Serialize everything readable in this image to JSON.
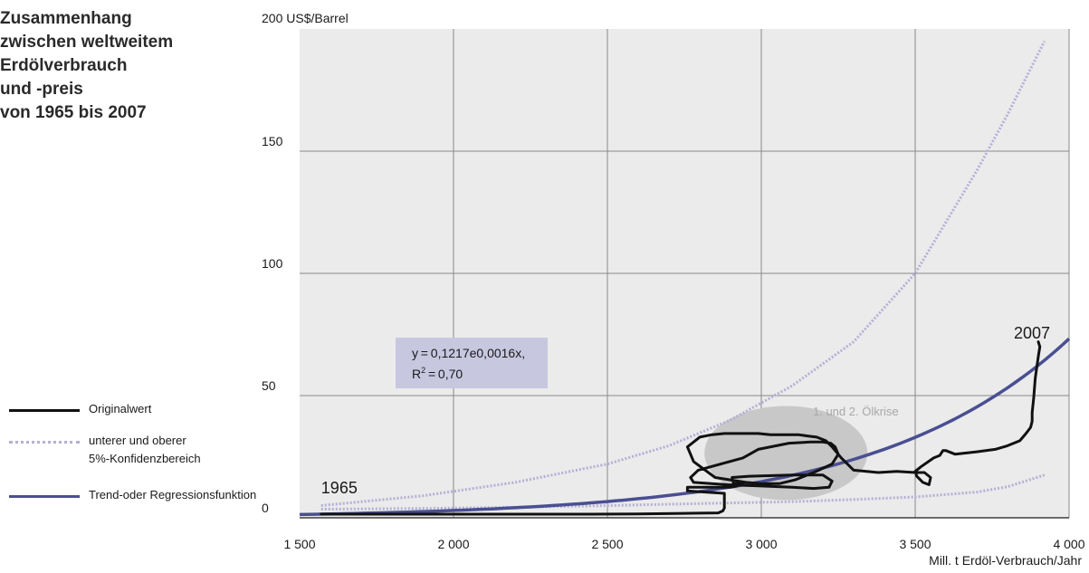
{
  "title_lines": [
    "Zusammenhang",
    "zwischen weltweitem",
    "Erdölverbrauch",
    "und -preis",
    "von 1965 bis 2007"
  ],
  "legend": {
    "original": "Originalwert",
    "confidence_line1": "unterer und oberer",
    "confidence_line2": "5%-Konfidenzbereich",
    "trend": "Trend-oder Regressionsfunktion"
  },
  "colors": {
    "background": "#ebebeb",
    "grid": "#8a8a8a",
    "original": "#111111",
    "trend": "#4a4f92",
    "confidence": "#b3b0d6",
    "equation_box": "#c8c7e0",
    "crisis_ellipse": "#c8c8c8",
    "crisis_label": "#a8a8a8"
  },
  "chart_data": {
    "type": "line",
    "title": "Zusammenhang zwischen weltweitem Erdölverbrauch und -preis von 1965 bis 2007",
    "xlabel": "Mill. t Erdöl-Verbrauch/Jahr",
    "ylabel": "200 US$/Barrel",
    "xlim": [
      1500,
      4000
    ],
    "ylim": [
      0,
      200
    ],
    "xticks": [
      1500,
      2000,
      2500,
      3000,
      3500,
      4000
    ],
    "xtick_labels": [
      "1 500",
      "2 000",
      "2 500",
      "3 000",
      "3 500",
      "4 000"
    ],
    "yticks": [
      0,
      50,
      100,
      150
    ],
    "ytick_labels": [
      "0",
      "50",
      "100",
      "150"
    ],
    "grid": true,
    "legend_position": "left",
    "annotations": {
      "start_year": "1965",
      "end_year": "2007",
      "crisis": "1. und 2. Ölkrise",
      "equation_line1": "y = 0,1217e0,0016x,",
      "equation_line2_base": "R",
      "equation_line2_sup": "2",
      "equation_line2_rest": " = 0,70"
    },
    "series": [
      {
        "name": "Originalwert",
        "x": [
          1570,
          1700,
          1850,
          2000,
          2150,
          2300,
          2450,
          2600,
          2750,
          2860,
          2875,
          2880,
          2880,
          2760,
          2760,
          2900,
          2920,
          2935,
          2945,
          2925,
          2910,
          2905,
          2960,
          3100,
          3200,
          3230,
          3220,
          3170,
          3100,
          3000,
          2890,
          2780,
          2770,
          2795,
          2940,
          2990,
          3090,
          3160,
          3200,
          3225,
          3240,
          3250,
          3230,
          3170,
          3110,
          3060,
          3000,
          2950,
          2850,
          2780,
          2760,
          2800,
          2840,
          2880,
          2930,
          2960,
          2990,
          3030,
          3060,
          3090,
          3120,
          3150,
          3180,
          3210,
          3230,
          3260,
          3300,
          3380,
          3440,
          3500,
          3530,
          3550,
          3545,
          3525,
          3505,
          3500,
          3520,
          3560,
          3580,
          3590,
          3600,
          3630,
          3700,
          3760,
          3800,
          3840,
          3860,
          3875,
          3880,
          3880,
          3885,
          3890,
          3900,
          3905,
          3900
        ],
        "y": [
          1.5,
          1.5,
          1.5,
          1.5,
          1.5,
          1.5,
          1.5,
          1.6,
          1.8,
          2.0,
          2.8,
          4.0,
          10.0,
          11.0,
          12.5,
          12.5,
          13.0,
          14.0,
          14.5,
          14.0,
          14.0,
          16.5,
          17.0,
          17.5,
          17.5,
          15.0,
          12.5,
          12.0,
          12.5,
          13.0,
          13.5,
          14.5,
          16.5,
          19.5,
          24.5,
          28.0,
          30.5,
          31.0,
          31.0,
          30.5,
          29.0,
          26.0,
          22.0,
          18.5,
          15.5,
          14.0,
          14.0,
          14.5,
          16.5,
          23.0,
          29.0,
          33.0,
          34.0,
          34.5,
          34.5,
          34.5,
          34.5,
          34.0,
          34.0,
          34.0,
          34.0,
          33.5,
          33.0,
          31.5,
          29.0,
          24.5,
          19.5,
          18.5,
          19.0,
          18.5,
          18.5,
          16.5,
          13.5,
          14.5,
          17.0,
          19.0,
          21.0,
          24.5,
          25.5,
          27.5,
          27.5,
          26.0,
          27.0,
          28.0,
          29.5,
          31.5,
          34.5,
          37.0,
          39.5,
          43.0,
          49.0,
          57.0,
          66.0,
          70.0,
          72.0
        ]
      },
      {
        "name": "Trend-oder Regressionsfunktion",
        "function": "0.1217*exp(0.0016*x)",
        "x_range": [
          1500,
          4000
        ]
      },
      {
        "name": "unterer Konfidenzbereich",
        "x": [
          1570,
          1900,
          2200,
          2500,
          2800,
          3100,
          3300,
          3500,
          3700,
          3800,
          3920
        ],
        "y": [
          3.5,
          3.8,
          4.3,
          5.0,
          5.8,
          6.6,
          7.5,
          8.5,
          10.5,
          12.7,
          17.5
        ]
      },
      {
        "name": "oberer Konfidenzbereich",
        "x": [
          1570,
          1900,
          2200,
          2500,
          2700,
          2900,
          3100,
          3300,
          3500,
          3700,
          3800,
          3920
        ],
        "y": [
          5.0,
          9.0,
          14.5,
          22.0,
          29.5,
          40.0,
          54.0,
          72.0,
          100.0,
          142.0,
          165.0,
          195.0
        ]
      }
    ]
  }
}
